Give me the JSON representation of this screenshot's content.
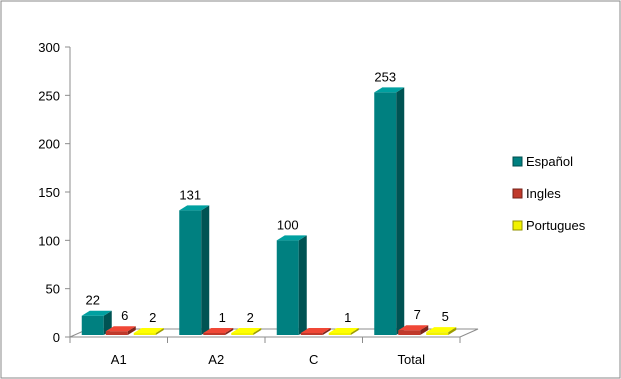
{
  "chart_data": {
    "type": "bar",
    "categories": [
      "A1",
      "A2",
      "C",
      "Total"
    ],
    "series": [
      {
        "name": "Español",
        "values": [
          22,
          131,
          100,
          253
        ],
        "color": "#008080"
      },
      {
        "name": "Ingles",
        "values": [
          6,
          1,
          0,
          7
        ],
        "color": "#C0392B"
      },
      {
        "name": "Portugues",
        "values": [
          2,
          2,
          1,
          5
        ],
        "color": "#F2F200"
      }
    ],
    "data_labels": [
      [
        "22",
        "131",
        "100",
        "253"
      ],
      [
        "6",
        "1",
        "",
        "7"
      ],
      [
        "2",
        "2",
        "1",
        "5"
      ]
    ],
    "ylim": [
      0,
      300
    ],
    "yticks": [
      0,
      50,
      100,
      150,
      200,
      250,
      300
    ],
    "legend_position": "right",
    "grid": false,
    "title": "",
    "xlabel": "",
    "ylabel": ""
  }
}
